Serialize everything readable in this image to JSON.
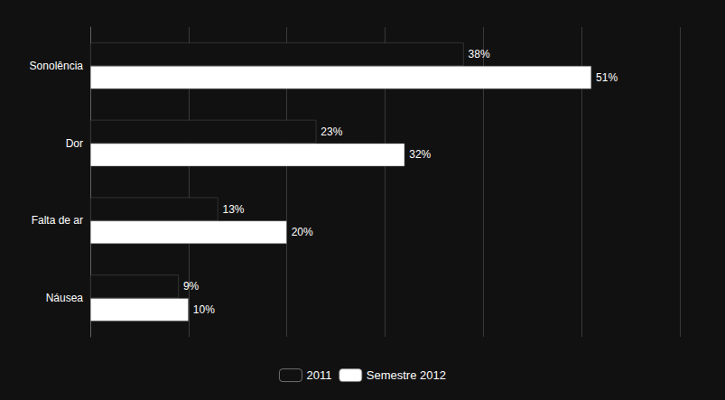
{
  "chart_data": {
    "type": "bar",
    "orientation": "horizontal",
    "categories": [
      "Náusea",
      "Falta de ar",
      "Dor",
      "Sonolência"
    ],
    "series": [
      {
        "name": "2011",
        "color": "#111111",
        "values": [
          9,
          13,
          23,
          38
        ],
        "value_labels": [
          "9%",
          "13%",
          "23%",
          "38%"
        ]
      },
      {
        "name": "Semestre 2012",
        "color": "#ffffff",
        "values": [
          10,
          20,
          32,
          51
        ],
        "value_labels": [
          "10%",
          "20%",
          "32%",
          "51%"
        ]
      }
    ],
    "xlim": [
      0,
      60
    ],
    "xticks": [
      0,
      10,
      20,
      30,
      40,
      50,
      60
    ],
    "grid": true,
    "tick_labels": "y",
    "data_labels": true,
    "legend": "bottom"
  }
}
